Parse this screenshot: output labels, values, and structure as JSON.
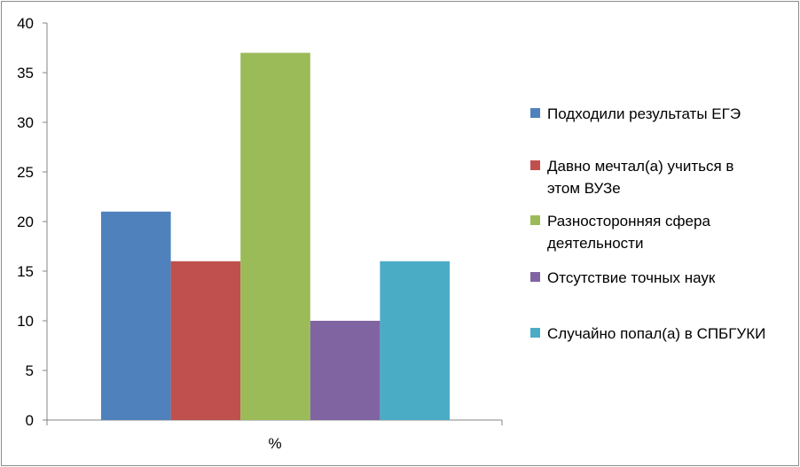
{
  "chart_data": {
    "type": "bar",
    "categories": [
      "%"
    ],
    "series": [
      {
        "name": "Подходили результаты ЕГЭ",
        "values": [
          21
        ],
        "color": "#4F81BD"
      },
      {
        "name": "Давно мечтал(а) учиться в этом ВУЗе",
        "values": [
          16
        ],
        "color": "#C0504D"
      },
      {
        "name": "Разносторонняя сфера деятельности",
        "values": [
          37
        ],
        "color": "#9BBB59"
      },
      {
        "name": "Отсутствие точных наук",
        "values": [
          10
        ],
        "color": "#8064A2"
      },
      {
        "name": "Случайно попал(а) в СПБГУКИ",
        "values": [
          16
        ],
        "color": "#4BACC6"
      }
    ],
    "y_ticks": [
      "0",
      "5",
      "10",
      "15",
      "20",
      "25",
      "30",
      "35",
      "40"
    ],
    "ylim": [
      0,
      40
    ],
    "grid": false,
    "legend": "right"
  }
}
